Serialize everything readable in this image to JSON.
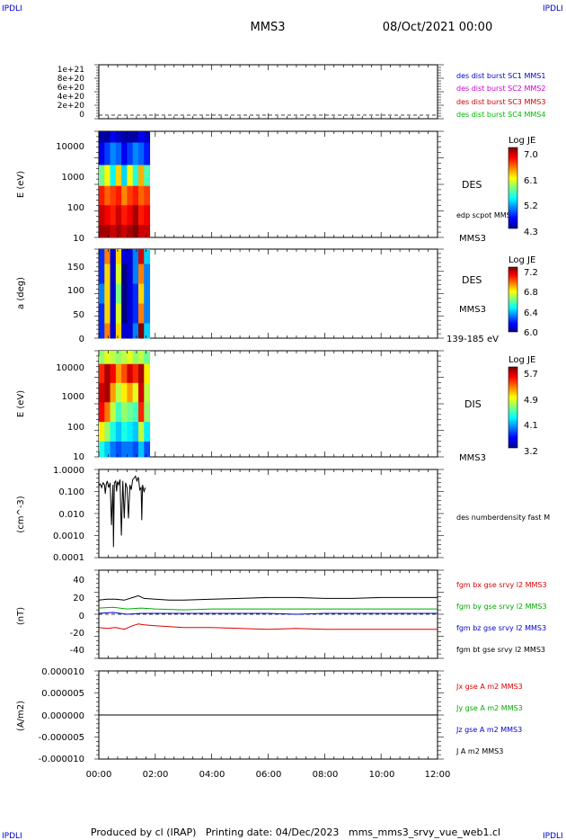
{
  "header": {
    "corner_label": "IPDLI",
    "title": "MMS3",
    "date": "08/Oct/2021 00:00"
  },
  "footer": {
    "text": "Produced by cl (IRAP)   Printing date: 04/Dec/2023   mms_mms3_srvy_vue_web1.cl"
  },
  "time_axis": {
    "ticks": [
      "00:00",
      "02:00",
      "04:00",
      "06:00",
      "08:00",
      "10:00",
      "12:00"
    ],
    "range_hours": [
      0,
      12
    ]
  },
  "panels": {
    "p1": {
      "ylim": [
        0,
        1e+21
      ],
      "yticks": [
        "1e+21",
        "8e+20",
        "6e+20",
        "4e+20",
        "2e+20",
        "0"
      ],
      "legend": [
        {
          "label": "des dist burst SC1 MMS1",
          "color": "#0000cc"
        },
        {
          "label": "des dist burst SC2 MMS2",
          "color": "#cc00cc"
        },
        {
          "label": "des dist burst SC3 MMS3",
          "color": "#cc0000"
        },
        {
          "label": "des dist burst SC4 MMS4",
          "color": "#00bb00"
        }
      ]
    },
    "p2": {
      "ylabel": "E (eV)",
      "yticks": [
        "10000",
        "1000",
        "100",
        "10"
      ],
      "label1": "DES",
      "label2": "edp scpot MMS3",
      "spacecraft": "MMS3",
      "colorbar": {
        "title": "Log JE",
        "ticks": [
          "7.0",
          "6.1",
          "5.2",
          "4.3"
        ]
      }
    },
    "p3": {
      "ylabel": "a (deg)",
      "yticks": [
        "150",
        "100",
        "50",
        "0"
      ],
      "label1": "DES",
      "label2": "MMS3",
      "energy_range": "139-185 eV",
      "colorbar": {
        "title": "Log JE",
        "ticks": [
          "7.2",
          "6.8",
          "6.4",
          "6.0"
        ]
      }
    },
    "p4": {
      "ylabel": "E (eV)",
      "yticks": [
        "10000",
        "1000",
        "100",
        "10"
      ],
      "label1": "DIS",
      "spacecraft": "MMS3",
      "colorbar": {
        "title": "Log JE",
        "ticks": [
          "5.7",
          "4.9",
          "4.1",
          "3.2"
        ]
      }
    },
    "p5": {
      "ylabel": "(cm^-3)",
      "yticks": [
        "1.0000",
        "0.100",
        "0.010",
        "0.0010",
        "0.0001"
      ],
      "legend": "des numberdensity fast M"
    },
    "p6": {
      "ylabel": "(nT)",
      "yticks": [
        "40",
        "20",
        "0",
        "-20",
        "-40"
      ],
      "legend": [
        {
          "label": "fgm bx gse srvy l2 MMS3",
          "color": "#dd0000"
        },
        {
          "label": "fgm by gse srvy l2 MMS3",
          "color": "#00aa00"
        },
        {
          "label": "fgm bz gse srvy l2 MMS3",
          "color": "#0000cc"
        },
        {
          "label": "fgm bt gse srvy l2 MMS3",
          "color": "#000000"
        }
      ]
    },
    "p7": {
      "ylabel": "(A/m2)",
      "yticks": [
        "0.000010",
        "0.000005",
        "0.000000",
        "-0.000005",
        "-0.000010"
      ],
      "legend": [
        {
          "label": "Jx gse A m2 MMS3",
          "color": "#dd0000"
        },
        {
          "label": "Jy gse A m2 MMS3",
          "color": "#00aa00"
        },
        {
          "label": "Jz gse A m2 MMS3",
          "color": "#0000cc"
        },
        {
          "label": "J A m2 MMS3",
          "color": "#000000"
        }
      ]
    }
  },
  "chart_data": [
    {
      "type": "line",
      "xlabel": "",
      "ylabel": "",
      "ylim": [
        0,
        1e+21
      ],
      "series": [
        {
          "name": "des dist burst SC1 MMS1",
          "x": [],
          "y": []
        },
        {
          "name": "des dist burst SC2 MMS2",
          "x": [],
          "y": []
        },
        {
          "name": "des dist burst SC3 MMS3",
          "x": [],
          "y": []
        },
        {
          "name": "des dist burst SC4 MMS4",
          "x": [],
          "y": []
        }
      ]
    },
    {
      "type": "heatmap",
      "ylabel": "E (eV)",
      "scale": "log",
      "ylim": [
        10,
        20000
      ],
      "x_hours": [
        0.0,
        0.2,
        0.4,
        0.6,
        0.8,
        1.0,
        1.2,
        1.4,
        1.6
      ],
      "y": [
        20000,
        4000,
        800,
        200,
        50,
        12
      ],
      "z": [
        [
          4.4,
          4.4,
          4.6,
          4.5,
          4.4,
          4.4,
          4.4,
          4.6,
          4.5
        ],
        [
          4.6,
          4.8,
          5.0,
          4.9,
          4.6,
          4.8,
          5.0,
          4.9,
          4.7
        ],
        [
          5.6,
          6.0,
          5.3,
          6.1,
          5.2,
          6.0,
          5.4,
          6.2,
          5.5
        ],
        [
          6.6,
          6.4,
          6.5,
          6.6,
          6.3,
          6.5,
          6.6,
          6.4,
          6.5
        ],
        [
          6.8,
          6.7,
          6.6,
          6.8,
          6.6,
          6.7,
          6.9,
          6.6,
          6.7
        ],
        [
          6.9,
          6.9,
          6.8,
          6.9,
          6.8,
          6.9,
          7.0,
          6.8,
          6.8
        ]
      ],
      "colorbar": {
        "label": "Log JE",
        "range": [
          4.3,
          7.0
        ]
      }
    },
    {
      "type": "heatmap",
      "ylabel": "a (deg)",
      "ylim": [
        0,
        180
      ],
      "x_hours": [
        0.0,
        0.2,
        0.4,
        0.6,
        0.8,
        1.0,
        1.2,
        1.4,
        1.6
      ],
      "y": [
        170,
        130,
        90,
        50,
        10
      ],
      "z": [
        [
          6.2,
          6.9,
          6.1,
          6.8,
          6.1,
          6.1,
          6.3,
          7.1,
          6.4
        ],
        [
          6.2,
          6.8,
          6.1,
          6.7,
          6.0,
          6.1,
          6.3,
          6.9,
          6.3
        ],
        [
          6.3,
          6.8,
          6.1,
          6.6,
          6.0,
          6.1,
          6.2,
          6.8,
          6.3
        ],
        [
          6.2,
          6.8,
          6.1,
          6.7,
          6.0,
          6.1,
          6.2,
          6.9,
          6.3
        ],
        [
          6.2,
          6.9,
          6.1,
          6.8,
          6.1,
          6.1,
          6.3,
          7.2,
          6.4
        ]
      ],
      "colorbar": {
        "label": "Log JE",
        "range": [
          6.0,
          7.2
        ]
      }
    },
    {
      "type": "heatmap",
      "ylabel": "E (eV)",
      "scale": "log",
      "ylim": [
        10,
        20000
      ],
      "x_hours": [
        0.0,
        0.2,
        0.4,
        0.6,
        0.8,
        1.0,
        1.2,
        1.4,
        1.6
      ],
      "y": [
        15000,
        4000,
        1000,
        250,
        60,
        15
      ],
      "z": [
        [
          4.5,
          4.7,
          4.6,
          4.5,
          4.6,
          4.7,
          4.5,
          4.6,
          4.4
        ],
        [
          5.3,
          5.6,
          5.4,
          5.0,
          5.2,
          5.5,
          5.3,
          5.6,
          4.8
        ],
        [
          5.5,
          5.6,
          5.0,
          4.6,
          4.8,
          5.0,
          4.7,
          5.5,
          4.6
        ],
        [
          5.4,
          5.1,
          4.6,
          4.3,
          4.5,
          4.4,
          4.3,
          5.3,
          4.5
        ],
        [
          4.8,
          4.5,
          4.2,
          4.0,
          4.2,
          4.1,
          4.0,
          4.6,
          4.1
        ],
        [
          4.2,
          4.0,
          3.8,
          3.7,
          3.8,
          3.8,
          3.7,
          4.0,
          3.7
        ]
      ],
      "colorbar": {
        "label": "Log JE",
        "range": [
          3.2,
          5.7
        ]
      }
    },
    {
      "type": "line",
      "ylabel": "(cm^-3)",
      "scale": "log",
      "ylim": [
        0.0001,
        1.0
      ],
      "series": [
        {
          "name": "des numberdensity fast M",
          "x": [
            0.0,
            0.05,
            0.1,
            0.15,
            0.2,
            0.23,
            0.26,
            0.3,
            0.35,
            0.4,
            0.45,
            0.5,
            0.52,
            0.55,
            0.6,
            0.63,
            0.66,
            0.7,
            0.75,
            0.8,
            0.85,
            0.9,
            0.95,
            1.0,
            1.05,
            1.1,
            1.15,
            1.2,
            1.25,
            1.3,
            1.35,
            1.4,
            1.45,
            1.5,
            1.52,
            1.55,
            1.6,
            1.65
          ],
          "y": [
            0.18,
            0.22,
            0.15,
            0.25,
            0.2,
            0.08,
            0.2,
            0.3,
            0.15,
            0.25,
            0.003,
            0.2,
            0.0003,
            0.25,
            0.3,
            0.1,
            0.28,
            0.2,
            0.35,
            0.001,
            0.3,
            0.006,
            0.25,
            0.15,
            0.006,
            0.2,
            0.12,
            0.35,
            0.4,
            0.5,
            0.3,
            0.45,
            0.12,
            0.15,
            0.005,
            0.2,
            0.1,
            0.15
          ]
        }
      ]
    },
    {
      "type": "line",
      "ylabel": "(nT)",
      "ylim": [
        -50,
        50
      ],
      "series": [
        {
          "name": "fgm bx gse srvy l2 MMS3",
          "x": [
            0,
            0.3,
            0.6,
            0.9,
            1.2,
            1.4,
            1.6,
            2.0,
            2.5,
            3.0,
            4.0,
            5.0,
            6.0,
            7.0,
            8.0,
            9.0,
            10.0,
            11.0,
            12.0
          ],
          "y": [
            -15,
            -16,
            -15,
            -17,
            -13,
            -11,
            -12,
            -13,
            -14,
            -15,
            -15,
            -16,
            -17,
            -16,
            -17,
            -17,
            -17,
            -17,
            -17
          ]
        },
        {
          "name": "fgm by gse srvy l2 MMS3",
          "x": [
            0,
            0.5,
            1.0,
            1.5,
            2.0,
            3.0,
            4.0,
            5.0,
            6.0,
            7.0,
            8.0,
            9.0,
            10.0,
            11.0,
            12.0
          ],
          "y": [
            7,
            8,
            6,
            7,
            6,
            5,
            6,
            6,
            6,
            6,
            6,
            6,
            6,
            6,
            6
          ]
        },
        {
          "name": "fgm bz gse srvy l2 MMS3",
          "x": [
            0,
            0.5,
            1.0,
            1.5,
            2.0,
            3.0,
            4.0,
            5.0,
            6.0,
            7.0,
            8.0,
            9.0,
            10.0,
            11.0,
            12.0
          ],
          "y": [
            1,
            2,
            0,
            1,
            1,
            1,
            1,
            1,
            1,
            0,
            1,
            1,
            1,
            1,
            1
          ]
        },
        {
          "name": "fgm bt gse srvy l2 MMS3",
          "x": [
            0,
            0.3,
            0.6,
            0.9,
            1.2,
            1.4,
            1.6,
            2.0,
            2.5,
            3.0,
            4.0,
            5.0,
            6.0,
            7.0,
            8.0,
            9.0,
            10.0,
            11.0,
            12.0
          ],
          "y": [
            16,
            17,
            17,
            16,
            19,
            21,
            18,
            17,
            16,
            16,
            17,
            18,
            19,
            19,
            18,
            18,
            19,
            19,
            19
          ]
        }
      ]
    },
    {
      "type": "line",
      "ylabel": "(A/m2)",
      "ylim": [
        -1e-05,
        1e-05
      ],
      "series": [
        {
          "name": "Jx gse A m2 MMS3",
          "x": [],
          "y": []
        },
        {
          "name": "Jy gse A m2 MMS3",
          "x": [],
          "y": []
        },
        {
          "name": "Jz gse A m2 MMS3",
          "x": [],
          "y": []
        },
        {
          "name": "J A m2 MMS3",
          "x": [
            0,
            12
          ],
          "y": [
            0.0,
            0.0
          ]
        }
      ]
    }
  ]
}
